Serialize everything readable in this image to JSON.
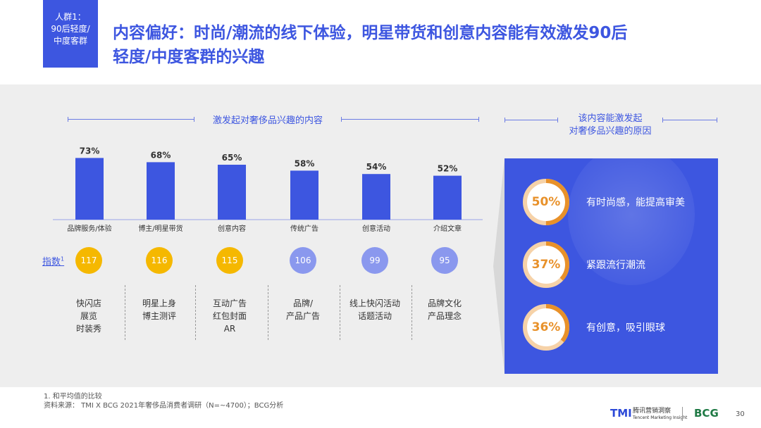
{
  "tag": {
    "lines": [
      "人群1：",
      "90后轻度/",
      "中度客群"
    ]
  },
  "title": {
    "line1": "内容偏好：时尚/潮流的线下体验，明星带货和创意内容能有效激发90后",
    "line2": "轻度/中度客群的兴趣"
  },
  "left_header": "激发起对奢侈品兴趣的内容",
  "right_header": {
    "line1": "该内容能激发起",
    "line2": "对奢侈品兴趣的原因"
  },
  "chart_data": {
    "type": "bar",
    "title": "激发起对奢侈品兴趣的内容",
    "categories": [
      "品牌服务/体验",
      "博主/明星带货",
      "创意内容",
      "传统广告",
      "创意活动",
      "介绍文章"
    ],
    "values": [
      73,
      68,
      65,
      58,
      54,
      52
    ],
    "value_labels": [
      "73%",
      "68%",
      "65%",
      "58%",
      "54%",
      "52%"
    ],
    "ylim": [
      0,
      100
    ],
    "xlabel": "",
    "ylabel": "",
    "grid": false
  },
  "index": {
    "label": "指数",
    "sup": "1",
    "values": [
      "117",
      "116",
      "115",
      "106",
      "99",
      "95"
    ],
    "colors": [
      "#f5b800",
      "#f5b800",
      "#f5b800",
      "#8a98ee",
      "#8a98ee",
      "#8a98ee"
    ]
  },
  "examples": [
    [
      "快闪店",
      "展览",
      "时装秀"
    ],
    [
      "明星上身",
      "博主测评"
    ],
    [
      "互动广告",
      "红包封面",
      "AR"
    ],
    [
      "品牌/",
      "产品广告"
    ],
    [
      "线上快闪活动",
      "话题活动"
    ],
    [
      "品牌文化",
      "产品理念"
    ]
  ],
  "reasons": [
    {
      "percent": "50%",
      "value": 50,
      "text": "有时尚感，能提高审美"
    },
    {
      "percent": "37%",
      "value": 37,
      "text": "紧跟流行潮流"
    },
    {
      "percent": "36%",
      "value": 36,
      "text": "有创意，吸引眼球"
    }
  ],
  "footnote": {
    "line1": "1. 和平均值的比较",
    "line2": "资料来源： TMI X BCG 2021年奢侈品消费者调研（N=~4700）；BCG分析"
  },
  "logos": {
    "tmi": "TMI",
    "tmi_sub1": "腾讯营销洞察",
    "tmi_sub2": "Tencent Marketing Insight",
    "bcg": "BCG"
  },
  "page_number": "30",
  "colors": {
    "accent": "#3d56e0",
    "bar": "#3d56e0",
    "ring_fill": "#e8912a",
    "ring_track": "#f6d2a8",
    "gold": "#f5b800",
    "lavender": "#8a98ee"
  }
}
